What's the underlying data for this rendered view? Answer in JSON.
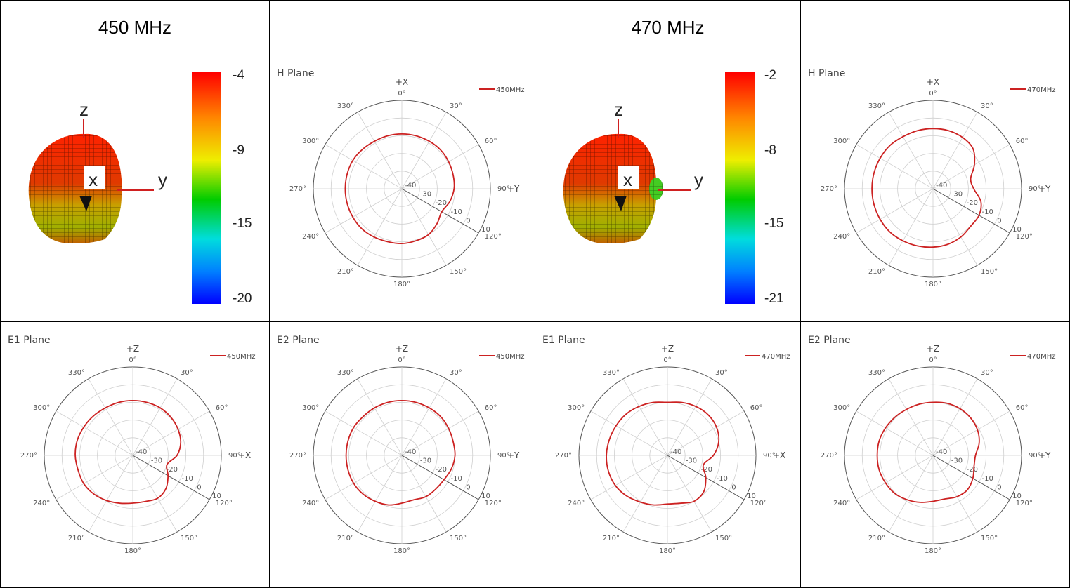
{
  "headers": [
    "450 MHz",
    "",
    "470 MHz",
    ""
  ],
  "colorbars": [
    {
      "id": "cb450",
      "ticks": [
        "-4",
        "-9",
        "-15",
        "-20"
      ]
    },
    {
      "id": "cb470",
      "ticks": [
        "-2",
        "-8",
        "-15",
        "-21"
      ]
    }
  ],
  "head_axes": {
    "z": "z",
    "x": "x",
    "y": "y"
  },
  "polar_ticks": {
    "angles": [
      "0°",
      "30°",
      "60°",
      "90°",
      "120°",
      "150°",
      "180°",
      "210°",
      "240°",
      "270°",
      "300°",
      "330°"
    ],
    "radial": [
      "-40",
      "-30",
      "-20",
      "-10",
      "0",
      "10"
    ]
  },
  "chart_data": [
    {
      "type": "line",
      "id": "p1",
      "title": "H Plane",
      "axis_top": "+X",
      "axis_right": "+Y",
      "legend": "450MHz",
      "series": [
        {
          "name": "450MHz",
          "color": "#cc2222",
          "theta_deg": [
            0,
            15,
            30,
            45,
            60,
            75,
            90,
            105,
            120,
            135,
            150,
            165,
            180,
            195,
            210,
            225,
            240,
            255,
            270,
            285,
            300,
            315,
            330,
            345
          ],
          "r_db": [
            -9,
            -9,
            -9,
            -9,
            -9.5,
            -10,
            -10.5,
            -12,
            -14,
            -12,
            -10,
            -9.5,
            -9,
            -9,
            -8.5,
            -8,
            -8,
            -8,
            -8,
            -8,
            -8,
            -8.5,
            -9,
            -9
          ]
        }
      ]
    },
    {
      "type": "line",
      "id": "p2",
      "title": "H Plane",
      "axis_top": "+X",
      "axis_right": "+Y",
      "legend": "470MHz",
      "series": [
        {
          "name": "470MHz",
          "color": "#cc2222",
          "theta_deg": [
            0,
            15,
            30,
            45,
            60,
            75,
            90,
            105,
            120,
            135,
            150,
            165,
            180,
            195,
            210,
            225,
            240,
            255,
            270,
            285,
            300,
            315,
            330,
            345
          ],
          "r_db": [
            -6,
            -6,
            -6.5,
            -8,
            -13,
            -18,
            -17,
            -12,
            -10,
            -10,
            -8.5,
            -7.5,
            -7,
            -6.5,
            -6,
            -5.5,
            -5.5,
            -5.5,
            -5.5,
            -5.5,
            -5.5,
            -5.5,
            -6,
            -6
          ]
        }
      ]
    },
    {
      "type": "line",
      "id": "p3",
      "title": "E1 Plane",
      "axis_top": "+Z",
      "axis_right": "+X",
      "legend": "450MHz",
      "series": [
        {
          "name": "450MHz",
          "color": "#cc2222",
          "theta_deg": [
            0,
            15,
            30,
            45,
            60,
            75,
            90,
            105,
            120,
            135,
            150,
            165,
            180,
            195,
            210,
            225,
            240,
            255,
            270,
            285,
            300,
            315,
            330,
            345
          ],
          "r_db": [
            -9,
            -9,
            -9,
            -9.5,
            -10.5,
            -12,
            -15,
            -20,
            -17,
            -13.5,
            -12,
            -13,
            -13,
            -12,
            -10.5,
            -9,
            -8,
            -8,
            -7.5,
            -7.5,
            -8,
            -8.5,
            -9,
            -9
          ]
        }
      ]
    },
    {
      "type": "line",
      "id": "p4",
      "title": "E2 Plane",
      "axis_top": "+Z",
      "axis_right": "+Y",
      "legend": "450MHz",
      "series": [
        {
          "name": "450MHz",
          "color": "#cc2222",
          "theta_deg": [
            0,
            15,
            30,
            45,
            60,
            75,
            90,
            105,
            120,
            135,
            150,
            165,
            180,
            195,
            210,
            225,
            240,
            255,
            270,
            285,
            300,
            315,
            330,
            345
          ],
          "r_db": [
            -9,
            -9,
            -9,
            -9,
            -9.5,
            -10,
            -10,
            -11,
            -12.5,
            -13,
            -13,
            -14,
            -13,
            -11,
            -10,
            -9,
            -8.5,
            -8.5,
            -8.5,
            -8.5,
            -8.5,
            -9,
            -9,
            -9
          ]
        }
      ]
    },
    {
      "type": "line",
      "id": "p5",
      "title": "E1 Plane",
      "axis_top": "+Z",
      "axis_right": "+X",
      "legend": "470MHz",
      "series": [
        {
          "name": "470MHz",
          "color": "#cc2222",
          "theta_deg": [
            0,
            15,
            30,
            45,
            60,
            75,
            90,
            105,
            120,
            135,
            150,
            165,
            180,
            195,
            210,
            225,
            240,
            255,
            270,
            285,
            300,
            315,
            330,
            345
          ],
          "r_db": [
            -10,
            -9,
            -8,
            -7.5,
            -8,
            -10,
            -14,
            -19,
            -15,
            -11,
            -10,
            -12,
            -12.5,
            -11,
            -9.5,
            -7.5,
            -6,
            -5.5,
            -5.5,
            -6,
            -6.5,
            -7,
            -8,
            -9
          ]
        }
      ]
    },
    {
      "type": "line",
      "id": "p6",
      "title": "E2 Plane",
      "axis_top": "+Z",
      "axis_right": "+Y",
      "legend": "470MHz",
      "series": [
        {
          "name": "470MHz",
          "color": "#cc2222",
          "theta_deg": [
            0,
            15,
            30,
            45,
            60,
            75,
            90,
            105,
            120,
            135,
            150,
            165,
            180,
            195,
            210,
            225,
            240,
            255,
            270,
            285,
            300,
            315,
            330,
            345
          ],
          "r_db": [
            -10,
            -9.5,
            -9.5,
            -10,
            -11,
            -13,
            -16,
            -16,
            -14,
            -12.5,
            -13,
            -14.5,
            -14,
            -12.5,
            -11,
            -9.5,
            -9,
            -8.5,
            -8.5,
            -8.5,
            -9,
            -9.5,
            -10,
            -10
          ]
        }
      ]
    }
  ]
}
